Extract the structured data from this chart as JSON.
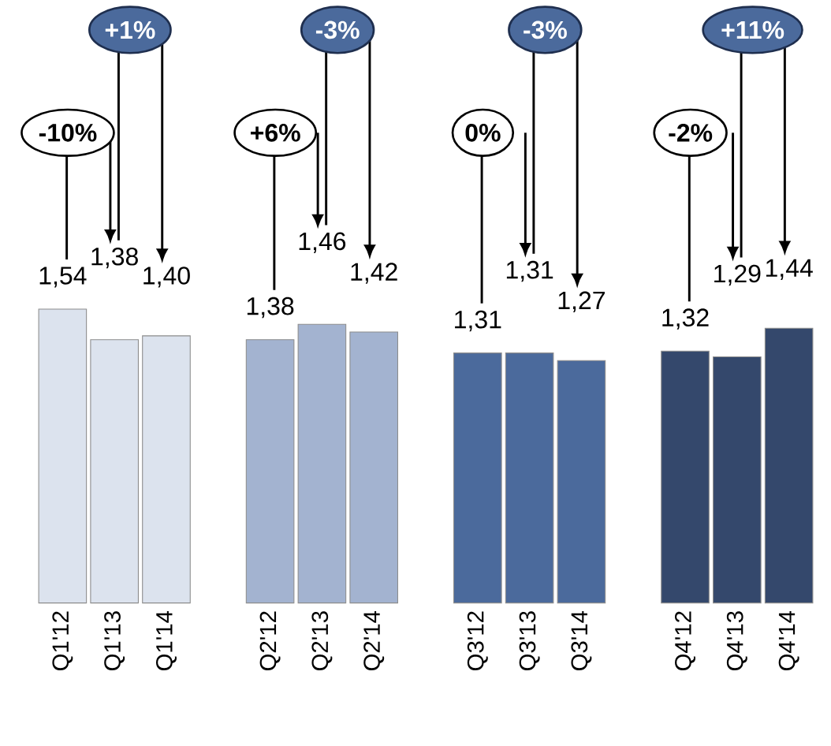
{
  "chart_data": {
    "type": "bar",
    "categories": [
      "Q1'12",
      "Q1'13",
      "Q1'14",
      null,
      "Q2'12",
      "Q2'13",
      "Q2'14",
      null,
      "Q3'12",
      "Q3'13",
      "Q3'14",
      null,
      "Q4'12",
      "Q4'13",
      "Q4'14"
    ],
    "values": [
      1.54,
      1.38,
      1.4,
      null,
      1.38,
      1.46,
      1.42,
      null,
      1.31,
      1.31,
      1.27,
      null,
      1.32,
      1.29,
      1.44
    ],
    "colors": [
      "#dce3ee",
      "#dce3ee",
      "#dce3ee",
      null,
      "#a3b3d0",
      "#a3b3d0",
      "#a3b3d0",
      null,
      "#4b6a9c",
      "#4b6a9c",
      "#4b6a9c",
      null,
      "#34486c",
      "#34486c",
      "#34486c"
    ],
    "value_labels": [
      "1,54",
      "1,38",
      "1,40",
      null,
      "1,38",
      "1,46",
      "1,42",
      null,
      "1,31",
      "1,31",
      "1,27",
      null,
      "1,32",
      "1,29",
      "1,44"
    ],
    "annotations": [
      "-10%",
      "+1%",
      "+6%",
      "-3%",
      "0%",
      "-3%",
      "-2%",
      "+11%"
    ]
  }
}
